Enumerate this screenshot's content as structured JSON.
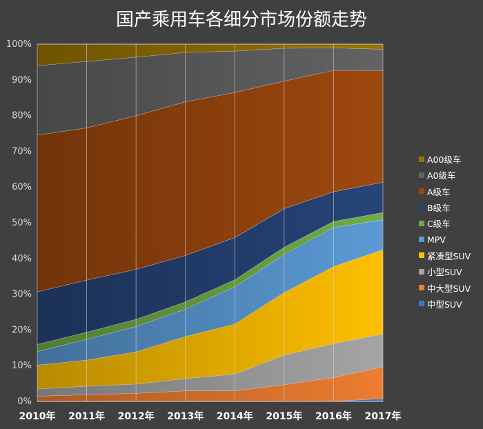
{
  "chart_data": {
    "type": "area",
    "stacked": true,
    "title": "国产乘用车各细分市场份额走势",
    "categories": [
      "2010年",
      "2011年",
      "2012年",
      "2013年",
      "2014年",
      "2015年",
      "2016年",
      "2017年"
    ],
    "y_ticks": [
      "0%",
      "10%",
      "20%",
      "30%",
      "40%",
      "50%",
      "60%",
      "70%",
      "80%",
      "90%",
      "100%"
    ],
    "ylim": [
      0,
      100
    ],
    "legend_position": "right",
    "series": [
      {
        "name": "中型SUV",
        "color": "#4472c4",
        "values": [
          0.1,
          0.1,
          0.1,
          0.1,
          0.1,
          0.1,
          0.1,
          0.8
        ]
      },
      {
        "name": "中大型SUV",
        "color": "#ed7d31",
        "values": [
          1.4,
          1.8,
          2.2,
          2.9,
          2.9,
          4.6,
          6.6,
          8.9
        ]
      },
      {
        "name": "小型SUV",
        "color": "#a5a5a5",
        "values": [
          2.0,
          2.4,
          2.6,
          3.4,
          4.7,
          8.3,
          9.5,
          9.2
        ]
      },
      {
        "name": "紧凑型SUV",
        "color": "#ffc000",
        "values": [
          6.7,
          7.3,
          9.0,
          11.8,
          14.0,
          17.5,
          21.6,
          23.6
        ]
      },
      {
        "name": "MPV",
        "color": "#5b9bd5",
        "values": [
          3.8,
          5.8,
          7.1,
          7.7,
          10.4,
          10.7,
          10.9,
          8.4
        ]
      },
      {
        "name": "C级车",
        "color": "#70ad47",
        "values": [
          2.0,
          2.0,
          2.0,
          2.0,
          2.0,
          2.0,
          1.7,
          2.0
        ]
      },
      {
        "name": "B级车",
        "color": "#264478",
        "values": [
          14.7,
          14.6,
          14.0,
          13.0,
          11.8,
          10.8,
          8.3,
          8.5
        ]
      },
      {
        "name": "A级车",
        "color": "#9e480e",
        "values": [
          43.9,
          42.6,
          43.0,
          43.0,
          40.6,
          35.7,
          34.0,
          31.2
        ]
      },
      {
        "name": "A0级车",
        "color": "#636363",
        "values": [
          19.4,
          18.6,
          16.4,
          13.8,
          11.6,
          9.2,
          6.3,
          6.0
        ]
      },
      {
        "name": "A00级车",
        "color": "#997300",
        "values": [
          6.0,
          4.8,
          3.6,
          2.3,
          1.9,
          1.1,
          1.0,
          1.4
        ]
      }
    ]
  }
}
